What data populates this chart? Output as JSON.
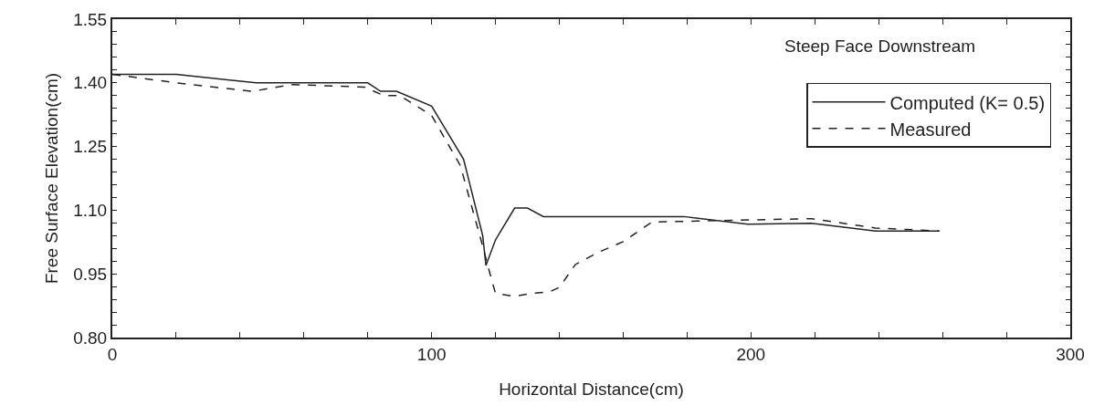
{
  "chart_data": {
    "type": "line",
    "xlabel": "Horizontal Distance(cm)",
    "ylabel": "Free Surface Elevation(cm)",
    "legend_title": "Steep Face Downstream",
    "legend": "top right",
    "grid": false,
    "marker": "none",
    "xlim": [
      0,
      300
    ],
    "ylim": [
      0.8,
      1.55
    ],
    "xticks": [
      0,
      {
        "value": 20,
        "label": null
      },
      {
        "value": 40,
        "label": null
      },
      {
        "value": 60,
        "label": null
      },
      {
        "value": 80,
        "label": null
      },
      100,
      {
        "value": 120,
        "label": null
      },
      {
        "value": 140,
        "label": null
      },
      {
        "value": 160,
        "label": null
      },
      {
        "value": 180,
        "label": null
      },
      200,
      {
        "value": 220,
        "label": null
      },
      {
        "value": 240,
        "label": null
      },
      {
        "value": 260,
        "label": null
      },
      {
        "value": 280,
        "label": null
      },
      300
    ],
    "yticks": [
      {
        "value": 0.8,
        "label": "0.80"
      },
      {
        "value": 0.83,
        "label": null
      },
      {
        "value": 0.86,
        "label": null
      },
      {
        "value": 0.89,
        "label": null
      },
      {
        "value": 0.92,
        "label": null
      },
      0.95,
      {
        "value": 0.98,
        "label": null
      },
      {
        "value": 1.01,
        "label": null
      },
      {
        "value": 1.04,
        "label": null
      },
      {
        "value": 1.07,
        "label": null
      },
      {
        "value": 1.1,
        "label": "1.10"
      },
      {
        "value": 1.13,
        "label": null
      },
      {
        "value": 1.16,
        "label": null
      },
      {
        "value": 1.19,
        "label": null
      },
      {
        "value": 1.22,
        "label": null
      },
      1.25,
      {
        "value": 1.28,
        "label": null
      },
      {
        "value": 1.31,
        "label": null
      },
      {
        "value": 1.34,
        "label": null
      },
      {
        "value": 1.37,
        "label": null
      },
      {
        "value": 1.4,
        "label": "1.40"
      },
      {
        "value": 1.43,
        "label": null
      },
      {
        "value": 1.46,
        "label": null
      },
      {
        "value": 1.49,
        "label": null
      },
      {
        "value": 1.52,
        "label": null
      },
      1.55
    ],
    "series": [
      {
        "name": "Computed (K= 0.5)",
        "color": "#222222",
        "line_style": "solid",
        "x": [
          0,
          20,
          45,
          80,
          84,
          89,
          100,
          110,
          116,
          117,
          120,
          126,
          130,
          135,
          179,
          199,
          219,
          239,
          259
        ],
        "values": [
          1.42,
          1.42,
          1.4,
          1.4,
          1.38,
          1.38,
          1.345,
          1.22,
          1.04,
          0.97,
          1.03,
          1.105,
          1.105,
          1.085,
          1.085,
          1.067,
          1.069,
          1.051,
          1.051
        ]
      },
      {
        "name": "Measured",
        "color": "#222222",
        "line_style": "dashed",
        "x": [
          0,
          20,
          44,
          56,
          79,
          85,
          90,
          100,
          109,
          116,
          118,
          120,
          126,
          131,
          137,
          140,
          145,
          152,
          160,
          169,
          205,
          219,
          239,
          259
        ],
        "values": [
          1.42,
          1.4,
          1.38,
          1.396,
          1.39,
          1.37,
          1.37,
          1.323,
          1.205,
          1.015,
          0.958,
          0.904,
          0.897,
          0.904,
          0.908,
          0.918,
          0.972,
          1.0,
          1.026,
          1.072,
          1.078,
          1.08,
          1.058,
          1.051
        ]
      }
    ]
  }
}
